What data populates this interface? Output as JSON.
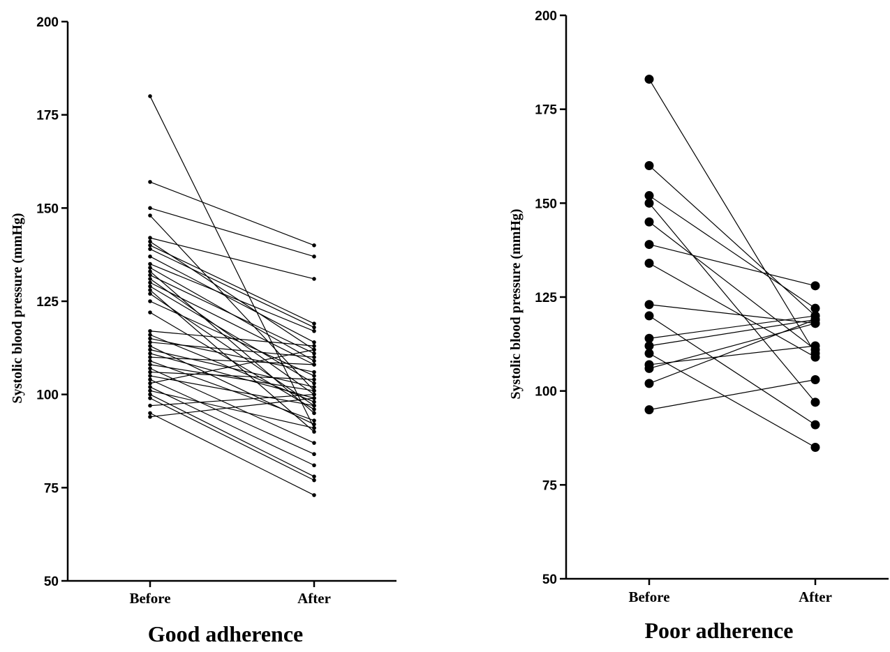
{
  "chart_data": [
    {
      "type": "line",
      "title": "Good adherence",
      "xlabel": "",
      "ylabel": "Systolic blood pressure (mmHg)",
      "categories": [
        "Before",
        "After"
      ],
      "ylim": [
        50,
        200
      ],
      "yticks": [
        50,
        75,
        100,
        125,
        150,
        175,
        200
      ],
      "grid": false,
      "series": [
        {
          "values": [
            180,
            91
          ]
        },
        {
          "values": [
            157,
            140
          ]
        },
        {
          "values": [
            150,
            137
          ]
        },
        {
          "values": [
            148,
            101
          ]
        },
        {
          "values": [
            142,
            131
          ]
        },
        {
          "values": [
            141,
            112
          ]
        },
        {
          "values": [
            140,
            119
          ]
        },
        {
          "values": [
            139,
            118
          ]
        },
        {
          "values": [
            137,
            114
          ]
        },
        {
          "values": [
            135,
            117
          ]
        },
        {
          "values": [
            134,
            109
          ]
        },
        {
          "values": [
            133,
            95
          ]
        },
        {
          "values": [
            132,
            111
          ]
        },
        {
          "values": [
            131,
            100
          ]
        },
        {
          "values": [
            130,
            108
          ]
        },
        {
          "values": [
            129,
            103
          ]
        },
        {
          "values": [
            128,
            90
          ]
        },
        {
          "values": [
            127,
            97
          ]
        },
        {
          "values": [
            125,
            105
          ]
        },
        {
          "values": [
            122,
            96
          ]
        },
        {
          "values": [
            117,
            113
          ]
        },
        {
          "values": [
            116,
            98
          ]
        },
        {
          "values": [
            115,
            106
          ]
        },
        {
          "values": [
            114,
            110
          ]
        },
        {
          "values": [
            113,
            92
          ]
        },
        {
          "values": [
            112,
            102
          ]
        },
        {
          "values": [
            111,
            99
          ]
        },
        {
          "values": [
            110,
            108
          ]
        },
        {
          "values": [
            109,
            93
          ]
        },
        {
          "values": [
            108,
            101
          ]
        },
        {
          "values": [
            107,
            87
          ]
        },
        {
          "values": [
            106,
            104
          ]
        },
        {
          "values": [
            105,
            97
          ]
        },
        {
          "values": [
            104,
            84
          ]
        },
        {
          "values": [
            103,
            112
          ]
        },
        {
          "values": [
            102,
            81
          ]
        },
        {
          "values": [
            101,
            91
          ]
        },
        {
          "values": [
            100,
            78
          ]
        },
        {
          "values": [
            99,
            77
          ]
        },
        {
          "values": [
            97,
            100
          ]
        },
        {
          "values": [
            95,
            73
          ]
        },
        {
          "values": [
            94,
            99
          ]
        }
      ]
    },
    {
      "type": "line",
      "title": "Poor adherence",
      "xlabel": "",
      "ylabel": "Systolic blood pressure (mmHg)",
      "categories": [
        "Before",
        "After"
      ],
      "ylim": [
        50,
        200
      ],
      "yticks": [
        50,
        75,
        100,
        125,
        150,
        175,
        200
      ],
      "grid": false,
      "series": [
        {
          "values": [
            183,
            110
          ]
        },
        {
          "values": [
            160,
            120
          ]
        },
        {
          "values": [
            152,
            122
          ]
        },
        {
          "values": [
            150,
            97
          ]
        },
        {
          "values": [
            145,
            111
          ]
        },
        {
          "values": [
            139,
            128
          ]
        },
        {
          "values": [
            134,
            109
          ]
        },
        {
          "values": [
            123,
            118
          ]
        },
        {
          "values": [
            120,
            91
          ]
        },
        {
          "values": [
            114,
            120
          ]
        },
        {
          "values": [
            112,
            119
          ]
        },
        {
          "values": [
            110,
            85
          ]
        },
        {
          "values": [
            107,
            112
          ]
        },
        {
          "values": [
            106,
            118
          ]
        },
        {
          "values": [
            102,
            119
          ]
        },
        {
          "values": [
            95,
            103
          ]
        }
      ]
    }
  ]
}
